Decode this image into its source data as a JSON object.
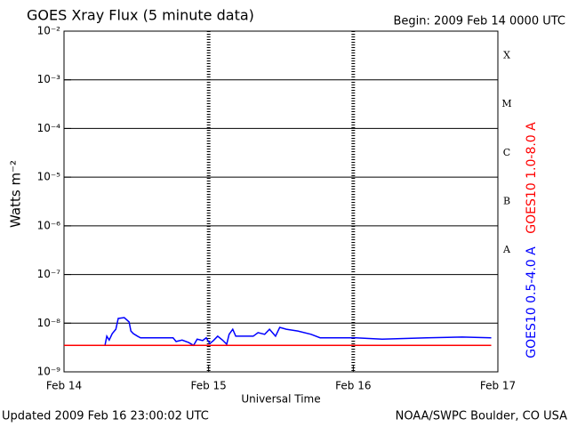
{
  "chart_data": {
    "type": "line",
    "title": "GOES Xray Flux (5 minute data)",
    "subtitle": "Begin:  2009 Feb 14 0000 UTC",
    "xlabel": "Universal Time",
    "ylabel": "Watts m⁻²",
    "footer_left": "Updated 2009 Feb 16 23:00:02 UTC",
    "footer_right": "NOAA/SWPC Boulder, CO USA",
    "yscale": "log",
    "grid": true,
    "xlim": [
      0,
      72
    ],
    "xticks": [
      {
        "value": 0,
        "label": "Feb 14"
      },
      {
        "value": 24,
        "label": "Feb 15"
      },
      {
        "value": 48,
        "label": "Feb 16"
      },
      {
        "value": 72,
        "label": "Feb 17"
      }
    ],
    "ylim": [
      1e-09,
      0.01
    ],
    "yticks": [
      {
        "value": 1e-09,
        "label": "10⁻⁹"
      },
      {
        "value": 1e-08,
        "label": "10⁻⁸"
      },
      {
        "value": 1e-07,
        "label": "10⁻⁷"
      },
      {
        "value": 1e-06,
        "label": "10⁻⁶"
      },
      {
        "value": 1e-05,
        "label": "10⁻⁵"
      },
      {
        "value": 0.0001,
        "label": "10⁻⁴"
      },
      {
        "value": 0.001,
        "label": "10⁻³"
      },
      {
        "value": 0.01,
        "label": "10⁻²"
      }
    ],
    "flare_classes": [
      "A",
      "B",
      "C",
      "M",
      "X"
    ],
    "series": [
      {
        "name": "GOES10 0.5-4.0 A",
        "color": "#0000ff",
        "x": [
          0,
          6.8,
          7.1,
          7.5,
          8.0,
          8.6,
          9.0,
          10.0,
          10.8,
          11.1,
          11.5,
          12.2,
          12.7,
          15.2,
          18.1,
          18.6,
          19.6,
          20.7,
          21.5,
          22.1,
          23.0,
          23.6,
          24.2,
          24.8,
          25.5,
          26.3,
          27.0,
          27.4,
          28.0,
          28.5,
          29.2,
          31.4,
          32.2,
          33.3,
          34.1,
          35.1,
          35.8,
          36.9,
          38.8,
          41.0,
          42.5,
          48.4,
          52.8,
          60.2,
          66.1,
          70.9
        ],
        "values": [
          3.5e-09,
          3.5e-09,
          5.4e-09,
          4.5e-09,
          6.1e-09,
          7.5e-09,
          1.25e-08,
          1.3e-08,
          1.06e-08,
          6.9e-09,
          6.1e-09,
          5.4e-09,
          5e-09,
          5e-09,
          5e-09,
          4.2e-09,
          4.5e-09,
          4e-09,
          3.5e-09,
          4.7e-09,
          4.4e-09,
          5e-09,
          3.8e-09,
          4.4e-09,
          5.4e-09,
          4.5e-09,
          3.7e-09,
          5.9e-09,
          7.5e-09,
          5.4e-09,
          5.4e-09,
          5.4e-09,
          6.4e-09,
          5.9e-09,
          7.5e-09,
          5.4e-09,
          8.2e-09,
          7.5e-09,
          6.9e-09,
          5.9e-09,
          5e-09,
          5e-09,
          4.7e-09,
          5e-09,
          5.2e-09,
          5e-09
        ]
      },
      {
        "name": "GOES10 1.0-8.0 A",
        "color": "#ff0000",
        "x": [
          0,
          24,
          48,
          70.9
        ],
        "values": [
          3.5e-09,
          3.5e-09,
          3.5e-09,
          3.5e-09
        ]
      }
    ]
  }
}
